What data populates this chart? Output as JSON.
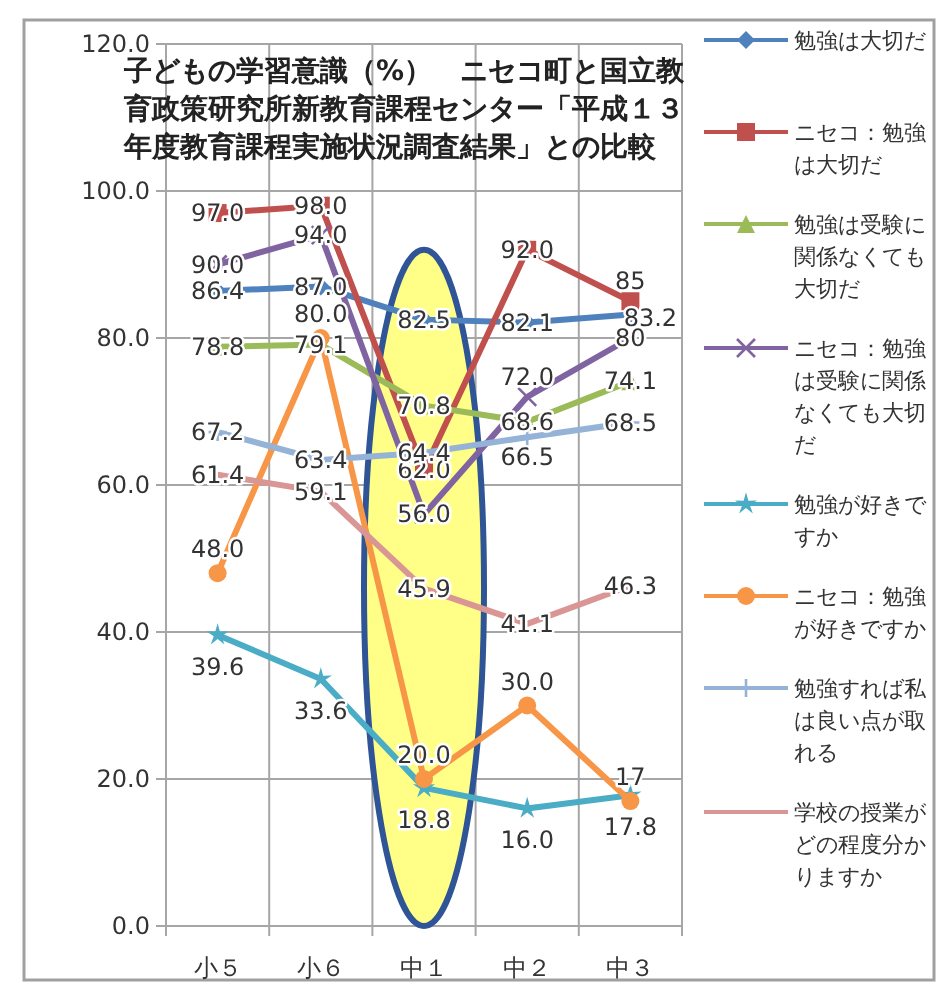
{
  "chart_data": {
    "type": "line",
    "title": "子どもの学習意識（%）　ニセコ町と国立教育政策研究所新教育課程センター「平成１３年度教育課程実施状況調査結果」との比較",
    "categories": [
      "小５",
      "小６",
      "中１",
      "中２",
      "中３"
    ],
    "ylim": [
      0,
      120
    ],
    "yticks": [
      {
        "value": 0,
        "label": "0.0"
      },
      {
        "value": 20,
        "label": "20.0"
      },
      {
        "value": 40,
        "label": "40.0"
      },
      {
        "value": 60,
        "label": "60.0"
      },
      {
        "value": 80,
        "label": "80.0"
      },
      {
        "value": 100,
        "label": "100.0"
      },
      {
        "value": 120,
        "label": "120.0"
      }
    ],
    "grid": true,
    "legend": "right",
    "series": [
      {
        "name": "勉強は大切だ",
        "color": "#4f81bd",
        "marker": "diamond",
        "values": [
          86.4,
          87.0,
          82.5,
          82.1,
          83.2
        ],
        "value_labels": [
          "86.4",
          "87.0",
          "82.5",
          "82.1",
          "83.2"
        ]
      },
      {
        "name": "ニセコ：勉強は大切だ",
        "color": "#c0504d",
        "marker": "square",
        "values": [
          97.0,
          98.0,
          62.0,
          92.0,
          85
        ],
        "value_labels": [
          "97.0",
          "98.0",
          "62.0",
          "92.0",
          "85"
        ]
      },
      {
        "name": "勉強は受験に関係なくても大切だ",
        "color": "#9bbb59",
        "marker": "triangle",
        "values": [
          78.8,
          79.1,
          70.8,
          68.6,
          74.1
        ],
        "value_labels": [
          "78.8",
          "79.1",
          "70.8",
          "68.6",
          "74.1"
        ]
      },
      {
        "name": "ニセコ：勉強は受験に関係なくても大切だ",
        "color": "#8064a2",
        "marker": "cross",
        "values": [
          90.0,
          94.0,
          56.0,
          72.0,
          80
        ],
        "value_labels": [
          "90.0",
          "94.0",
          "56.0",
          "72.0",
          "80"
        ]
      },
      {
        "name": "勉強が好きですか",
        "color": "#4bacc6",
        "marker": "star",
        "values": [
          39.6,
          33.6,
          18.8,
          16.0,
          17.8
        ],
        "value_labels": [
          "39.6",
          "33.6",
          "18.8",
          "16.0",
          "17.8"
        ]
      },
      {
        "name": "ニセコ：勉強が好きですか",
        "color": "#f79646",
        "marker": "circle",
        "values": [
          48.0,
          80.0,
          20.0,
          30.0,
          17
        ],
        "value_labels": [
          "48.0",
          "80.0",
          "20.0",
          "30.0",
          "17"
        ]
      },
      {
        "name": "勉強すれば私は良い点が取れる",
        "color": "#95b3d7",
        "marker": "plus",
        "values": [
          67.2,
          63.4,
          64.4,
          66.5,
          68.5
        ],
        "value_labels": [
          "67.2",
          "63.4",
          "64.4",
          "66.5",
          "68.5"
        ]
      },
      {
        "name": "学校の授業がどの程度分かりますか",
        "color": "#d99694",
        "marker": "none",
        "values": [
          61.4,
          59.1,
          45.9,
          41.1,
          46.3
        ],
        "value_labels": [
          "61.4",
          "59.1",
          "45.9",
          "41.1",
          "46.3"
        ]
      }
    ]
  }
}
